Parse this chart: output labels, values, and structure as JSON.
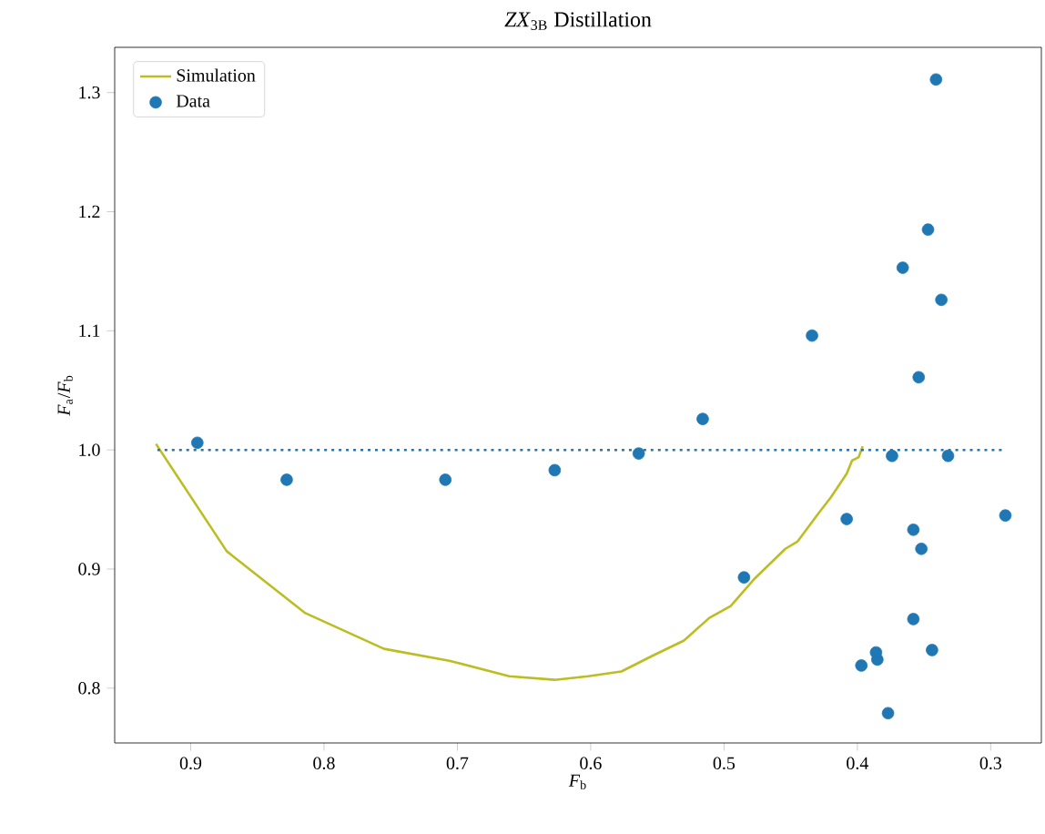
{
  "chart_data": {
    "type": "scatter",
    "title": "*ZX*$_{3B}$ Distillation",
    "xlabel": "*F*$_{b}$",
    "ylabel": "*F*$_{a}$/*F*$_{b}$",
    "xlim": [
      0.957,
      0.262
    ],
    "ylim": [
      0.754,
      1.338
    ],
    "xticks": [
      0.9,
      0.8,
      0.7,
      0.6,
      0.5,
      0.4,
      0.3
    ],
    "yticks": [
      0.8,
      0.9,
      {
        "value": 1.0,
        "label": "1.0"
      },
      1.1,
      1.2,
      1.3
    ],
    "legend": "top left",
    "grid": false,
    "series": [
      {
        "name": "Simulation",
        "type": "line",
        "color": "#bcbd22",
        "marker": "none",
        "line_style": "solid",
        "x": [
          0.926,
          0.873,
          0.814,
          0.755,
          0.706,
          0.661,
          0.627,
          0.602,
          0.577,
          0.554,
          0.53,
          0.511,
          0.495,
          0.477,
          0.454,
          0.445,
          0.429,
          0.42,
          0.408,
          0.404,
          0.399,
          0.396
        ],
        "values": [
          1.005,
          0.915,
          0.863,
          0.833,
          0.823,
          0.81,
          0.807,
          0.81,
          0.814,
          0.827,
          0.84,
          0.859,
          0.869,
          0.892,
          0.917,
          0.923,
          0.947,
          0.96,
          0.98,
          0.991,
          0.994,
          1.003
        ]
      },
      {
        "name": "Data",
        "color": "#1f77b4",
        "marker": "circle",
        "x": [
          0.895,
          0.828,
          0.709,
          0.627,
          0.564,
          0.516,
          0.485,
          0.434,
          0.408,
          0.397,
          0.385,
          0.386,
          0.377,
          0.374,
          0.366,
          0.358,
          0.358,
          0.354,
          0.352,
          0.347,
          0.344,
          0.341,
          0.337,
          0.332,
          0.289
        ],
        "values": [
          1.006,
          0.975,
          0.975,
          0.983,
          0.997,
          1.026,
          0.893,
          1.096,
          0.942,
          0.819,
          0.824,
          0.83,
          0.779,
          0.995,
          1.153,
          0.858,
          0.933,
          1.061,
          0.917,
          1.185,
          0.832,
          1.311,
          1.126,
          0.995,
          0.945
        ]
      },
      {
        "type": "line",
        "color": "#1f77b4",
        "marker": "none",
        "line_style": "dotted",
        "x": [
          0.925,
          0.29
        ],
        "values": [
          1.0,
          1.0
        ]
      }
    ]
  }
}
